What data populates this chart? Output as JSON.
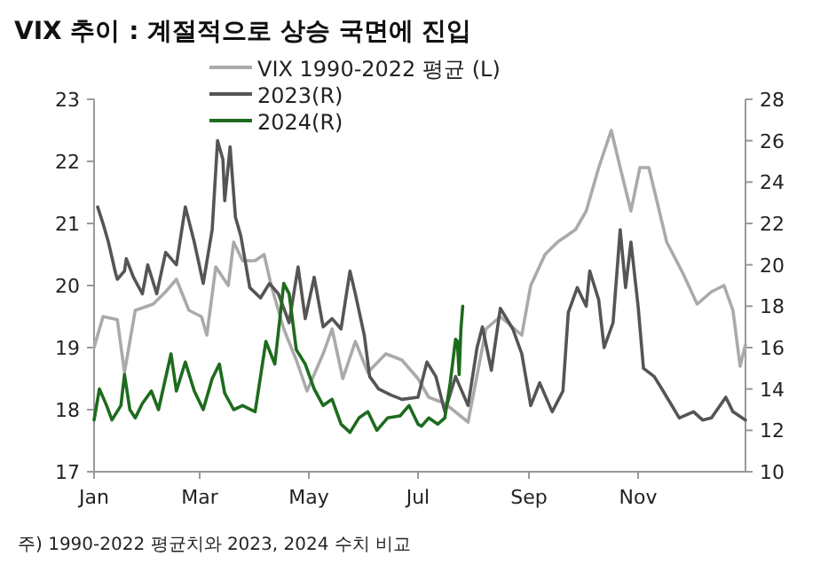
{
  "chart_data": {
    "type": "line",
    "title": "VIX 추이 : 계절적으로 상승 국면에 진입",
    "annotations": [
      "주) 1990-2022 평균치와 2023, 2024 수치 비교"
    ],
    "xlim": [
      "--01-01",
      "--12-31"
    ],
    "xticks": [
      {
        "value": "--01-01",
        "label": "Jan"
      },
      {
        "value": "--03-01",
        "label": "Mar"
      },
      {
        "value": "--05-01",
        "label": "May"
      },
      {
        "value": "--07-01",
        "label": "Jul"
      },
      {
        "value": "--09-01",
        "label": "Sep"
      },
      {
        "value": "--11-01",
        "label": "Nov"
      }
    ],
    "ylim": [
      17,
      23
    ],
    "yticks": [
      17,
      18,
      19,
      20,
      21,
      22,
      23
    ],
    "y2lim": [
      10,
      28
    ],
    "y2ticks": [
      10,
      12,
      14,
      16,
      18,
      20,
      22,
      24,
      26,
      28
    ],
    "grid": false,
    "legend": "top",
    "marker": "none",
    "line_style": "solid",
    "series": [
      {
        "name": "VIX 1990-2022 평균 (L)",
        "color": "#aaaaaa",
        "axis": "y",
        "x": [
          "--01-01",
          "--01-06",
          "--01-14",
          "--01-18",
          "--01-24",
          "--02-03",
          "--02-10",
          "--02-16",
          "--02-23",
          "--03-02",
          "--03-05",
          "--03-10",
          "--03-17",
          "--03-20",
          "--03-25",
          "--04-01",
          "--04-06",
          "--04-10",
          "--04-17",
          "--04-24",
          "--04-30",
          "--05-09",
          "--05-14",
          "--05-20",
          "--05-27",
          "--06-03",
          "--06-13",
          "--06-22",
          "--07-01",
          "--07-07",
          "--07-16",
          "--07-29",
          "--08-08",
          "--08-16",
          "--08-28",
          "--09-02",
          "--09-10",
          "--09-17",
          "--09-27",
          "--10-03",
          "--10-10",
          "--10-17",
          "--10-22",
          "--10-28",
          "--11-02",
          "--11-07",
          "--11-12",
          "--11-17",
          "--11-26",
          "--12-04",
          "--12-12",
          "--12-19",
          "--12-24",
          "--12-28",
          "--12-31"
        ],
        "values": [
          19.0,
          19.5,
          19.45,
          18.6,
          19.6,
          19.7,
          19.9,
          20.1,
          19.6,
          19.5,
          19.2,
          20.3,
          20.0,
          20.7,
          20.4,
          20.4,
          20.5,
          20.0,
          19.3,
          18.8,
          18.3,
          18.9,
          19.3,
          18.5,
          19.1,
          18.6,
          18.9,
          18.8,
          18.5,
          18.2,
          18.1,
          17.8,
          19.3,
          19.5,
          19.2,
          20.0,
          20.5,
          20.7,
          20.9,
          21.2,
          21.9,
          22.5,
          21.9,
          21.2,
          21.9,
          21.9,
          21.3,
          20.7,
          20.2,
          19.7,
          19.9,
          20.0,
          19.6,
          18.7,
          19.05
        ]
      },
      {
        "name": "2023(R)",
        "color": "#555555",
        "axis": "y2",
        "x": [
          "--01-03",
          "--01-06",
          "--01-09",
          "--01-13",
          "--01-14",
          "--01-18",
          "--01-19",
          "--01-23",
          "--01-28",
          "--01-31",
          "--02-05",
          "--02-10",
          "--02-16",
          "--02-21",
          "--02-26",
          "--03-03",
          "--03-08",
          "--03-11",
          "--03-14",
          "--03-15",
          "--03-18",
          "--03-21",
          "--03-24",
          "--03-29",
          "--04-04",
          "--04-09",
          "--04-14",
          "--04-20",
          "--04-25",
          "--04-29",
          "--05-04",
          "--05-09",
          "--05-14",
          "--05-19",
          "--05-24",
          "--05-27",
          "--06-01",
          "--06-04",
          "--06-09",
          "--06-16",
          "--06-22",
          "--07-01",
          "--07-06",
          "--07-11",
          "--07-16",
          "--07-22",
          "--07-29",
          "--08-03",
          "--08-06",
          "--08-11",
          "--08-16",
          "--08-23",
          "--08-28",
          "--09-02",
          "--09-07",
          "--09-14",
          "--09-20",
          "--09-23",
          "--09-28",
          "--10-03",
          "--10-05",
          "--10-10",
          "--10-13",
          "--10-18",
          "--10-22",
          "--10-25",
          "--10-28",
          "--11-01",
          "--11-04",
          "--11-10",
          "--11-15",
          "--11-24",
          "--12-02",
          "--12-07",
          "--12-12",
          "--12-20",
          "--12-24",
          "--12-31"
        ],
        "values": [
          22.8,
          22.0,
          21.1,
          19.6,
          19.3,
          19.7,
          20.3,
          19.4,
          18.6,
          20.0,
          18.6,
          20.6,
          20.0,
          22.8,
          21.1,
          19.1,
          21.7,
          26.0,
          25.1,
          23.1,
          25.7,
          22.3,
          21.4,
          18.9,
          18.4,
          19.1,
          18.6,
          17.2,
          19.9,
          17.4,
          19.4,
          17.0,
          17.4,
          16.9,
          19.7,
          18.6,
          16.6,
          14.6,
          14.0,
          13.7,
          13.5,
          13.6,
          15.3,
          14.6,
          12.9,
          14.6,
          13.2,
          16.0,
          17.0,
          14.9,
          17.9,
          16.9,
          15.7,
          13.2,
          14.3,
          12.9,
          13.9,
          17.7,
          18.9,
          18.0,
          19.7,
          18.3,
          16.0,
          17.2,
          21.7,
          18.9,
          21.1,
          18.0,
          15.0,
          14.6,
          13.9,
          12.6,
          12.9,
          12.5,
          12.6,
          13.6,
          12.9,
          12.5
        ]
      },
      {
        "name": "2024(R)",
        "color": "#1e6b1e",
        "axis": "y2",
        "x": [
          "--01-01",
          "--01-04",
          "--01-08",
          "--01-11",
          "--01-16",
          "--01-18",
          "--01-21",
          "--01-24",
          "--01-28",
          "--02-02",
          "--02-06",
          "--02-13",
          "--02-16",
          "--02-21",
          "--02-26",
          "--03-03",
          "--03-08",
          "--03-12",
          "--03-15",
          "--03-20",
          "--03-25",
          "--04-01",
          "--04-04",
          "--04-07",
          "--04-12",
          "--04-17",
          "--04-20",
          "--04-24",
          "--04-29",
          "--05-04",
          "--05-09",
          "--05-14",
          "--05-19",
          "--05-24",
          "--05-29",
          "--06-03",
          "--06-08",
          "--06-14",
          "--06-21",
          "--06-26",
          "--07-01",
          "--07-03",
          "--07-07",
          "--07-12",
          "--07-16",
          "--07-19",
          "--07-22",
          "--07-23",
          "--07-24",
          "--07-25",
          "--07-26"
        ],
        "values": [
          12.5,
          14.0,
          13.2,
          12.5,
          13.2,
          14.7,
          13.0,
          12.6,
          13.3,
          13.9,
          13.0,
          15.7,
          13.9,
          15.3,
          13.9,
          13.0,
          14.5,
          15.2,
          13.8,
          13.0,
          13.2,
          12.9,
          14.6,
          16.3,
          15.2,
          19.1,
          18.6,
          15.9,
          15.2,
          14.0,
          13.2,
          13.5,
          12.3,
          11.9,
          12.6,
          12.9,
          12.0,
          12.6,
          12.7,
          13.2,
          12.3,
          12.2,
          12.6,
          12.3,
          12.6,
          14.3,
          16.4,
          16.3,
          14.7,
          16.9,
          18.0
        ]
      }
    ]
  }
}
